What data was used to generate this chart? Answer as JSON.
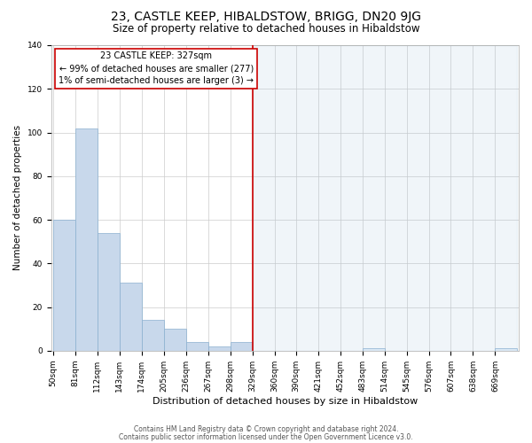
{
  "title": "23, CASTLE KEEP, HIBALDSTOW, BRIGG, DN20 9JG",
  "subtitle": "Size of property relative to detached houses in Hibaldstow",
  "xlabel": "Distribution of detached houses by size in Hibaldstow",
  "ylabel": "Number of detached properties",
  "bar_edges": [
    50,
    81,
    112,
    143,
    174,
    205,
    236,
    267,
    298,
    329,
    360,
    390,
    421,
    452,
    483,
    514,
    545,
    576,
    607,
    638,
    669
  ],
  "bar_heights": [
    60,
    102,
    54,
    31,
    14,
    10,
    4,
    2,
    4,
    0,
    0,
    0,
    0,
    0,
    1,
    0,
    0,
    0,
    0,
    0,
    1
  ],
  "bar_color_left": "#c8d8eb",
  "bar_color_right": "#dae8f5",
  "bar_edge_color": "#8ab0d0",
  "vline_x": 329,
  "vline_color": "#cc0000",
  "ylim": [
    0,
    140
  ],
  "yticks": [
    0,
    20,
    40,
    60,
    80,
    100,
    120,
    140
  ],
  "annotation_title": "23 CASTLE KEEP: 327sqm",
  "annotation_line1": "← 99% of detached houses are smaller (277)",
  "annotation_line2": "1% of semi-detached houses are larger (3) →",
  "annotation_box_color": "#ffffff",
  "annotation_box_edge": "#cc0000",
  "grid_color": "#cccccc",
  "background_color": "#ffffff",
  "footer1": "Contains HM Land Registry data © Crown copyright and database right 2024.",
  "footer2": "Contains public sector information licensed under the Open Government Licence v3.0.",
  "title_fontsize": 10,
  "subtitle_fontsize": 8.5,
  "xlabel_fontsize": 8,
  "ylabel_fontsize": 7.5,
  "tick_fontsize": 6.5,
  "annotation_title_fontsize": 7.5,
  "annotation_text_fontsize": 7,
  "footer_fontsize": 5.5
}
